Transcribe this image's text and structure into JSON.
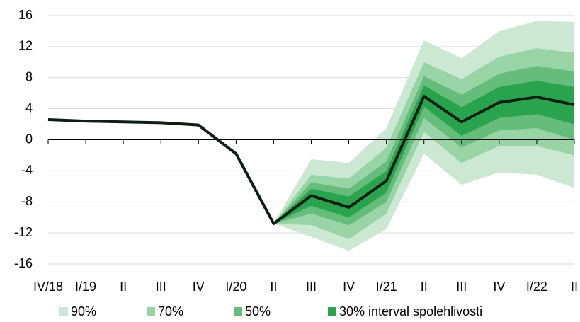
{
  "chart_data": {
    "type": "fan",
    "categories": [
      "IV/18",
      "I/19",
      "II",
      "III",
      "IV",
      "I/20",
      "II",
      "III",
      "IV",
      "I/21",
      "II",
      "III",
      "IV",
      "I/22",
      "II"
    ],
    "series": [
      {
        "color": "#0d1f12",
        "values": [
          2.6,
          2.4,
          2.3,
          2.2,
          1.9,
          -1.8,
          -10.8,
          -7.2,
          -8.7,
          -5.3,
          5.6,
          2.3,
          4.8,
          5.5,
          4.5
        ]
      }
    ],
    "bands": [
      {
        "name": "90%",
        "color": "#cce8d2",
        "high": [
          null,
          null,
          null,
          null,
          null,
          null,
          -10.8,
          -2.5,
          -3,
          1.5,
          12.8,
          10.5,
          14,
          15.3,
          15.2
        ],
        "low": [
          null,
          null,
          null,
          null,
          null,
          null,
          -10.8,
          -12.5,
          -14.3,
          -11.5,
          -1.8,
          -5.8,
          -4.2,
          -4.5,
          -6.2
        ]
      },
      {
        "name": "70%",
        "color": "#98d4a6",
        "high": [
          null,
          null,
          null,
          null,
          null,
          null,
          -10.8,
          -4.5,
          -5,
          -1,
          10,
          7.8,
          10.7,
          11.8,
          11.2
        ],
        "low": [
          null,
          null,
          null,
          null,
          null,
          null,
          -10.8,
          -11,
          -12.8,
          -9.5,
          1,
          -3,
          -0.8,
          -0.8,
          -2
        ]
      },
      {
        "name": "50%",
        "color": "#66bd7b",
        "high": [
          null,
          null,
          null,
          null,
          null,
          null,
          -10.8,
          -5.5,
          -6.3,
          -2.8,
          8.2,
          5.8,
          8.5,
          9.5,
          8.8
        ],
        "low": [
          null,
          null,
          null,
          null,
          null,
          null,
          -10.8,
          -9.5,
          -11,
          -8,
          2.8,
          -1,
          1.2,
          1.5,
          0
        ]
      },
      {
        "name": "30% interval spolehlivosti",
        "color": "#2aa34e",
        "high": [
          null,
          null,
          null,
          null,
          null,
          null,
          -10.8,
          -6.3,
          -7.3,
          -4,
          7,
          4.2,
          6.8,
          7.6,
          6.8
        ],
        "low": [
          null,
          null,
          null,
          null,
          null,
          null,
          -10.8,
          -8.5,
          -10,
          -6.8,
          4.3,
          0.5,
          2.8,
          3.3,
          2
        ]
      }
    ],
    "ylim": [
      -16,
      16
    ],
    "yticks": [
      -16,
      -12,
      -8,
      -4,
      0,
      4,
      8,
      12,
      16
    ],
    "grid": true
  }
}
